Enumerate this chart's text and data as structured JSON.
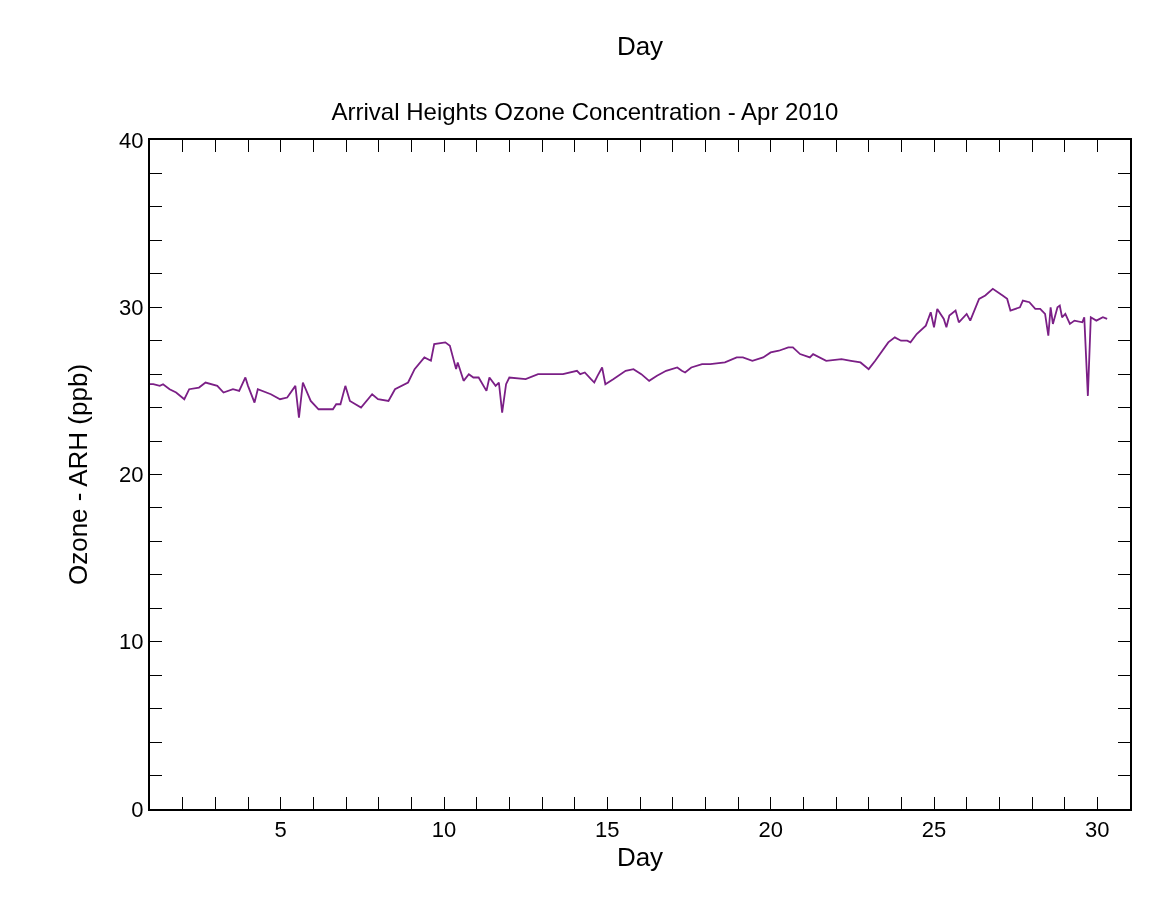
{
  "chart_data": {
    "type": "line",
    "title": "Arrival Heights Ozone Concentration - Apr 2010",
    "xlabel": "Day",
    "x2label": "Day",
    "ylabel": "Ozone - ARH (ppb)",
    "xlim": [
      1,
      31
    ],
    "xticks": [
      {
        "value": 2,
        "label": null
      },
      {
        "value": 3,
        "label": null
      },
      {
        "value": 4,
        "label": null
      },
      5,
      {
        "value": 6,
        "label": null
      },
      {
        "value": 7,
        "label": null
      },
      {
        "value": 8,
        "label": null
      },
      {
        "value": 9,
        "label": null
      },
      10,
      {
        "value": 11,
        "label": null
      },
      {
        "value": 12,
        "label": null
      },
      {
        "value": 13,
        "label": null
      },
      {
        "value": 14,
        "label": null
      },
      15,
      {
        "value": 16,
        "label": null
      },
      {
        "value": 17,
        "label": null
      },
      {
        "value": 18,
        "label": null
      },
      {
        "value": 19,
        "label": null
      },
      20,
      {
        "value": 21,
        "label": null
      },
      {
        "value": 22,
        "label": null
      },
      {
        "value": 23,
        "label": null
      },
      {
        "value": 24,
        "label": null
      },
      25,
      {
        "value": 26,
        "label": null
      },
      {
        "value": 27,
        "label": null
      },
      {
        "value": 28,
        "label": null
      },
      {
        "value": 29,
        "label": null
      },
      30
    ],
    "ylim": [
      0,
      40
    ],
    "yticks": [
      0,
      {
        "value": 2,
        "label": null
      },
      {
        "value": 4,
        "label": null
      },
      {
        "value": 6,
        "label": null
      },
      {
        "value": 8,
        "label": null
      },
      10,
      {
        "value": 12,
        "label": null
      },
      {
        "value": 14,
        "label": null
      },
      {
        "value": 16,
        "label": null
      },
      {
        "value": 18,
        "label": null
      },
      20,
      {
        "value": 22,
        "label": null
      },
      {
        "value": 24,
        "label": null
      },
      {
        "value": 26,
        "label": null
      },
      {
        "value": 28,
        "label": null
      },
      30,
      {
        "value": 32,
        "label": null
      },
      {
        "value": 34,
        "label": null
      },
      {
        "value": 36,
        "label": null
      },
      {
        "value": 38,
        "label": null
      },
      40
    ],
    "grid": false,
    "marker": "none",
    "line_style": "solid",
    "x": [
      1.0,
      1.1,
      1.3,
      1.4,
      1.6,
      1.8,
      2.05,
      2.2,
      2.5,
      2.7,
      3.06,
      3.25,
      3.54,
      3.73,
      3.92,
      4.0,
      4.2,
      4.3,
      4.7,
      4.98,
      5.2,
      5.45,
      5.56,
      5.68,
      5.92,
      6.16,
      6.6,
      6.7,
      6.83,
      6.98,
      7.12,
      7.46,
      7.8,
      7.98,
      8.3,
      8.5,
      8.9,
      9.1,
      9.4,
      9.6,
      9.7,
      10.04,
      10.18,
      10.37,
      10.42,
      10.6,
      10.76,
      10.9,
      11.06,
      11.3,
      11.39,
      11.58,
      11.68,
      11.78,
      11.9,
      12.0,
      12.5,
      12.88,
      13.36,
      13.64,
      14.07,
      14.17,
      14.31,
      14.5,
      14.6,
      14.7,
      14.84,
      14.94,
      15.18,
      15.56,
      15.8,
      16.04,
      16.28,
      16.52,
      16.8,
      17.14,
      17.28,
      17.38,
      17.57,
      17.9,
      18.15,
      18.6,
      18.96,
      19.15,
      19.44,
      19.77,
      20.0,
      20.25,
      20.54,
      20.68,
      20.9,
      21.2,
      21.3,
      21.7,
      22.17,
      22.46,
      22.75,
      23.0,
      23.2,
      23.6,
      23.8,
      23.99,
      24.18,
      24.28,
      24.47,
      24.75,
      24.9,
      25.0,
      25.1,
      25.3,
      25.38,
      25.47,
      25.66,
      25.76,
      26.0,
      26.11,
      26.38,
      26.57,
      26.8,
      27.1,
      27.24,
      27.34,
      27.63,
      27.72,
      27.92,
      28.1,
      28.25,
      28.4,
      28.5,
      28.57,
      28.64,
      28.78,
      28.85,
      28.92,
      29.02,
      29.16,
      29.3,
      29.54,
      29.6,
      29.71,
      29.8,
      29.97,
      30.17,
      30.3
    ],
    "series": [
      {
        "color": "#7b1f86",
        "values": [
          25.4,
          25.4,
          25.3,
          25.4,
          25.1,
          24.9,
          24.5,
          25.1,
          25.2,
          25.5,
          25.3,
          24.9,
          25.1,
          25.0,
          25.8,
          25.3,
          24.3,
          25.1,
          24.8,
          24.5,
          24.6,
          25.3,
          23.4,
          25.5,
          24.4,
          23.9,
          23.9,
          24.2,
          24.2,
          25.3,
          24.4,
          24.0,
          24.8,
          24.5,
          24.4,
          25.1,
          25.5,
          26.3,
          27.0,
          26.8,
          27.8,
          27.9,
          27.7,
          26.3,
          26.7,
          25.6,
          26.0,
          25.8,
          25.8,
          25.0,
          25.8,
          25.3,
          25.5,
          23.7,
          25.4,
          25.8,
          25.7,
          26.0,
          26.0,
          26.0,
          26.2,
          26.0,
          26.1,
          25.7,
          25.5,
          25.9,
          26.4,
          25.4,
          25.7,
          26.2,
          26.3,
          26.0,
          25.6,
          25.9,
          26.2,
          26.4,
          26.2,
          26.1,
          26.4,
          26.6,
          26.6,
          26.7,
          27.0,
          27.0,
          26.8,
          27.0,
          27.3,
          27.4,
          27.6,
          27.6,
          27.2,
          27.0,
          27.2,
          26.8,
          26.9,
          26.8,
          26.7,
          26.3,
          26.8,
          27.9,
          28.2,
          28.0,
          28.0,
          27.9,
          28.4,
          28.9,
          29.7,
          28.8,
          29.9,
          29.3,
          28.8,
          29.5,
          29.8,
          29.1,
          29.6,
          29.2,
          30.5,
          30.7,
          31.1,
          30.7,
          30.5,
          29.8,
          30.0,
          30.4,
          30.3,
          29.9,
          29.9,
          29.6,
          28.3,
          30.0,
          29.0,
          30.0,
          30.1,
          29.4,
          29.6,
          29.0,
          29.2,
          29.1,
          29.4,
          24.7,
          29.4,
          29.2,
          29.4,
          29.3
        ]
      }
    ]
  }
}
